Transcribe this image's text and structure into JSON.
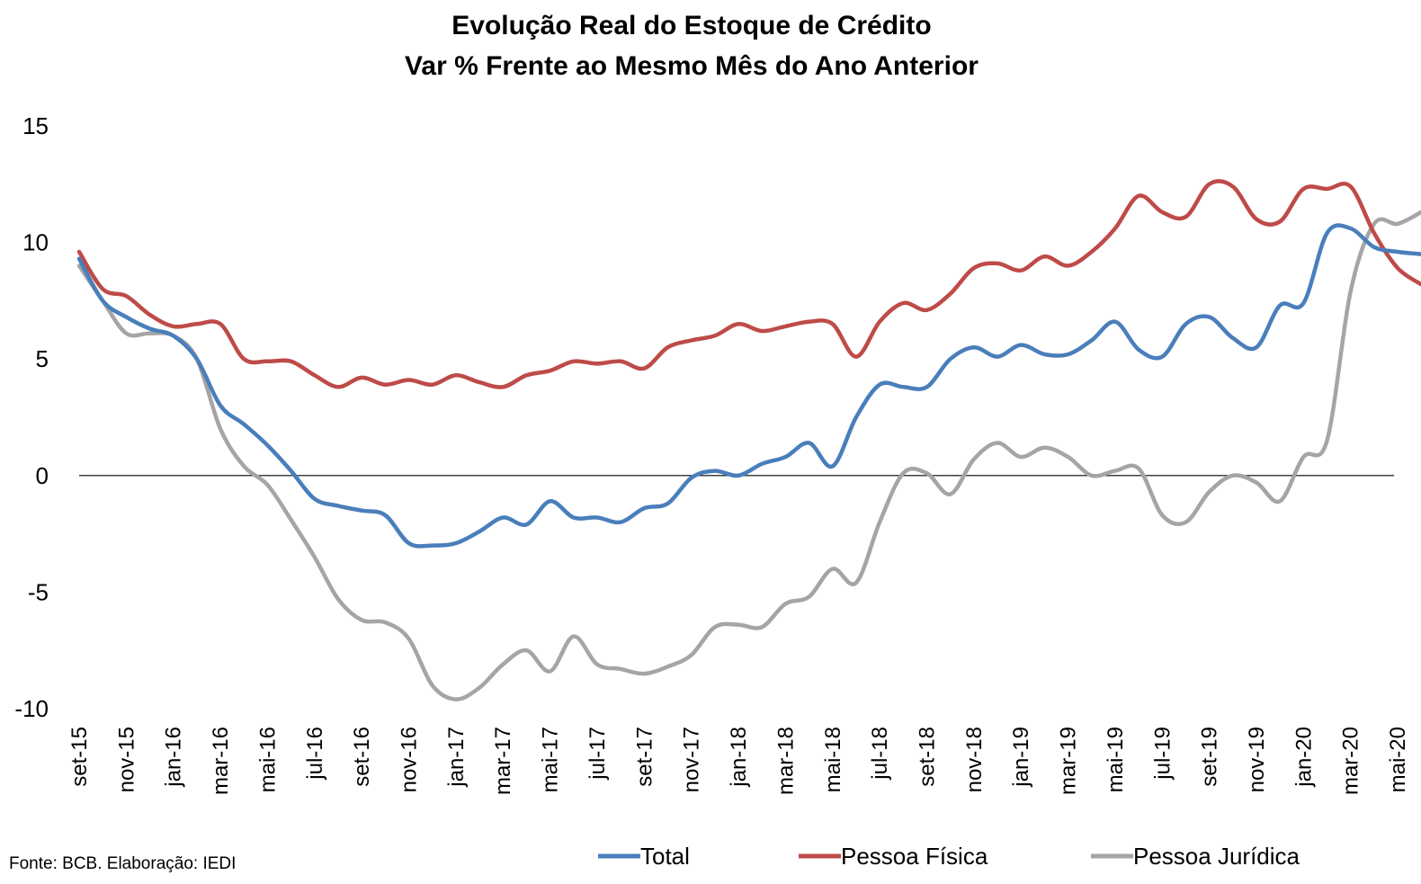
{
  "chart_data": {
    "type": "line",
    "title": "Evolução Real do Estoque de Crédito",
    "subtitle": "Var % Frente ao Mesmo Mês do Ano Anterior",
    "ylim": [
      -10,
      15
    ],
    "yticks": [
      "15",
      "10",
      "5",
      "0",
      "-5",
      "-10"
    ],
    "xtick_labels": [
      "set-15",
      "nov-15",
      "jan-16",
      "mar-16",
      "mai-16",
      "jul-16",
      "set-16",
      "nov-16",
      "jan-17",
      "mar-17",
      "mai-17",
      "jul-17",
      "set-17",
      "nov-17",
      "jan-18",
      "mar-18",
      "mai-18",
      "jul-18",
      "set-18",
      "nov-18",
      "jan-19",
      "mar-19",
      "mai-19",
      "jul-19",
      "set-19",
      "nov-19",
      "jan-20",
      "mar-20",
      "mai-20"
    ],
    "x": [
      "set-15",
      "out-15",
      "nov-15",
      "dez-15",
      "jan-16",
      "fev-16",
      "mar-16",
      "abr-16",
      "mai-16",
      "jun-16",
      "jul-16",
      "ago-16",
      "set-16",
      "out-16",
      "nov-16",
      "dez-16",
      "jan-17",
      "fev-17",
      "mar-17",
      "abr-17",
      "mai-17",
      "jun-17",
      "jul-17",
      "ago-17",
      "set-17",
      "out-17",
      "nov-17",
      "dez-17",
      "jan-18",
      "fev-18",
      "mar-18",
      "abr-18",
      "mai-18",
      "jun-18",
      "jul-18",
      "ago-18",
      "set-18",
      "out-18",
      "nov-18",
      "dez-18",
      "jan-19",
      "fev-19",
      "mar-19",
      "abr-19",
      "mai-19",
      "jun-19",
      "jul-19",
      "ago-19",
      "set-19",
      "out-19",
      "nov-19",
      "dez-19",
      "jan-20",
      "fev-20",
      "mar-20",
      "abr-20",
      "mai-20",
      "jun-20"
    ],
    "series": [
      {
        "name": "Total",
        "color": "#4a7ebb",
        "values": [
          9.3,
          7.5,
          6.8,
          6.3,
          6.0,
          5.0,
          3.0,
          2.2,
          1.3,
          0.2,
          -1.0,
          -1.3,
          -1.5,
          -1.7,
          -2.9,
          -3.0,
          -2.9,
          -2.4,
          -1.8,
          -2.1,
          -1.1,
          -1.8,
          -1.8,
          -2.0,
          -1.4,
          -1.2,
          -0.1,
          0.2,
          0.0,
          0.5,
          0.8,
          1.4,
          0.4,
          2.5,
          3.9,
          3.8,
          3.8,
          5.0,
          5.5,
          5.1,
          5.6,
          5.2,
          5.2,
          5.8,
          6.6,
          5.4,
          5.1,
          6.5,
          6.8,
          5.9,
          5.5,
          7.3,
          7.4,
          10.4,
          10.6,
          9.8,
          9.6,
          9.5
        ]
      },
      {
        "name": "Pessoa Física",
        "color": "#be4b48",
        "values": [
          9.6,
          8.0,
          7.7,
          6.9,
          6.4,
          6.5,
          6.5,
          5.0,
          4.9,
          4.9,
          4.3,
          3.8,
          4.2,
          3.9,
          4.1,
          3.9,
          4.3,
          4.0,
          3.8,
          4.3,
          4.5,
          4.9,
          4.8,
          4.9,
          4.6,
          5.5,
          5.8,
          6.0,
          6.5,
          6.2,
          6.4,
          6.6,
          6.5,
          5.1,
          6.6,
          7.4,
          7.1,
          7.8,
          8.9,
          9.1,
          8.8,
          9.4,
          9.0,
          9.6,
          10.6,
          12.0,
          11.3,
          11.1,
          12.5,
          12.4,
          11.0,
          10.9,
          12.3,
          12.3,
          12.4,
          10.4,
          8.9,
          8.2
        ]
      },
      {
        "name": "Pessoa Jurídica",
        "color": "#a5a5a5",
        "values": [
          9.0,
          7.5,
          6.1,
          6.1,
          6.0,
          5.0,
          2.0,
          0.4,
          -0.4,
          -1.9,
          -3.5,
          -5.3,
          -6.2,
          -6.3,
          -7.0,
          -9.0,
          -9.6,
          -9.1,
          -8.1,
          -7.5,
          -8.4,
          -6.9,
          -8.1,
          -8.3,
          -8.5,
          -8.2,
          -7.7,
          -6.5,
          -6.4,
          -6.5,
          -5.5,
          -5.2,
          -4.0,
          -4.6,
          -2.0,
          0.1,
          0.1,
          -0.8,
          0.7,
          1.4,
          0.8,
          1.2,
          0.8,
          0.0,
          0.2,
          0.3,
          -1.7,
          -2.0,
          -0.7,
          0.0,
          -0.3,
          -1.1,
          0.8,
          1.5,
          7.9,
          10.8,
          10.8,
          11.3
        ]
      }
    ],
    "legend": "bottom",
    "grid": false
  },
  "source": "Fonte: BCB. Elaboração: IEDI"
}
